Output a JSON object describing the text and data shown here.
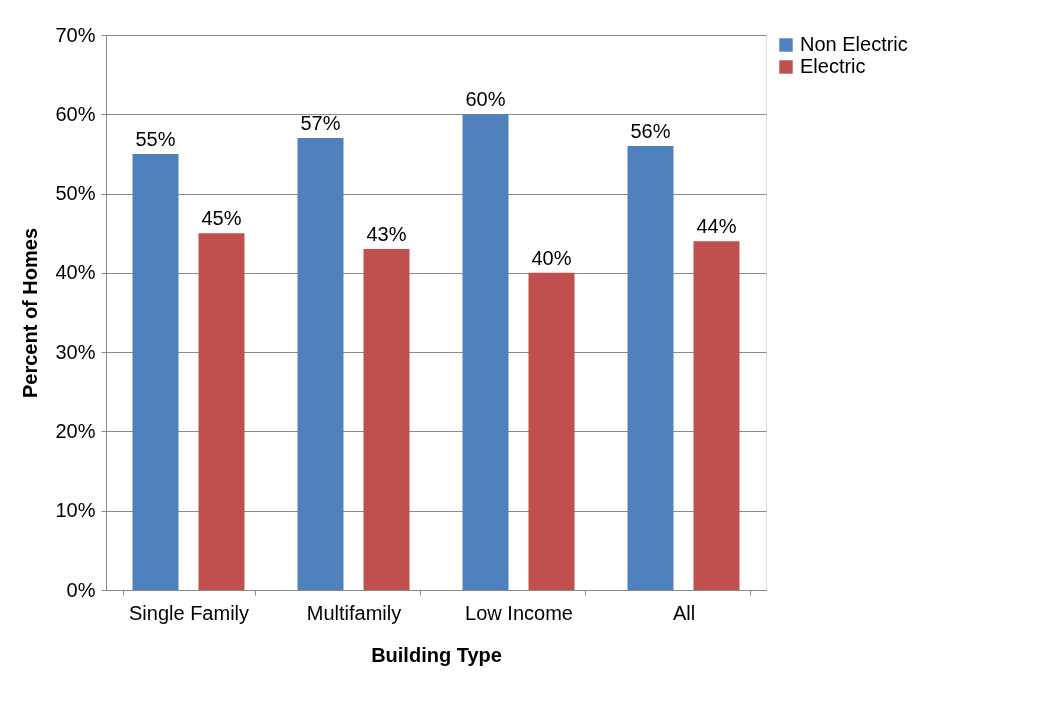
{
  "chart_data": {
    "type": "bar",
    "xlabel": "Building Type",
    "ylabel": "Percent of Homes",
    "categories": [
      "Single Family",
      "Multifamily",
      "Low Income",
      "All"
    ],
    "series": [
      {
        "name": "Non Electric",
        "color": "#4f81bd",
        "values": [
          55,
          57,
          60,
          56
        ],
        "value_labels": [
          "55%",
          "57%",
          "60%",
          "56%"
        ]
      },
      {
        "name": "Electric",
        "color": "#c0504d",
        "values": [
          45,
          43,
          40,
          44
        ],
        "value_labels": [
          "45%",
          "43%",
          "40%",
          "44%"
        ]
      }
    ],
    "ylim": [
      0,
      70
    ],
    "yticks": [
      {
        "value": 0,
        "label": "0%"
      },
      {
        "value": 10,
        "label": "10%"
      },
      {
        "value": 20,
        "label": "20%"
      },
      {
        "value": 30,
        "label": "30%"
      },
      {
        "value": 40,
        "label": "40%"
      },
      {
        "value": 50,
        "label": "50%"
      },
      {
        "value": 60,
        "label": "60%"
      },
      {
        "value": 70,
        "label": "70%"
      }
    ],
    "grid": "y",
    "legend": "right"
  }
}
